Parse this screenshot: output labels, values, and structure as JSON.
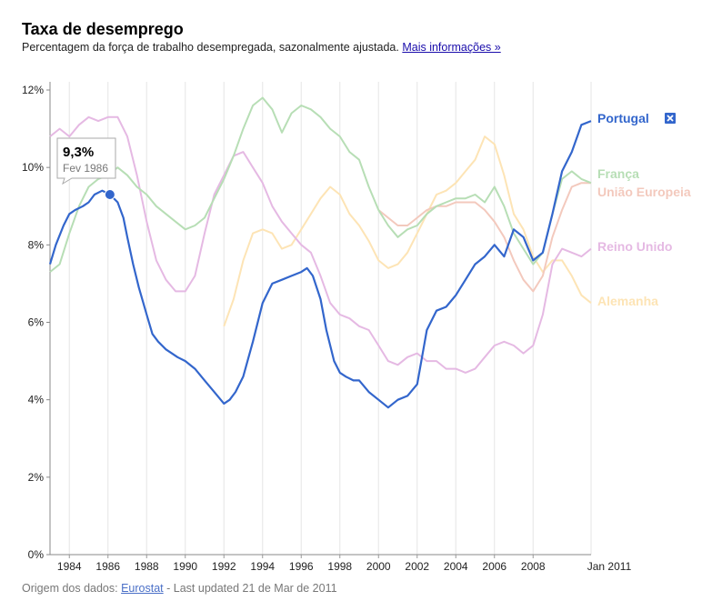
{
  "header": {
    "title": "Taxa de desemprego",
    "subtitle": "Percentagem da força de trabalho desempregada, sazonalmente ajustada.",
    "more_link": "Mais informações »"
  },
  "footer": {
    "source_prefix": "Origem dos dados:",
    "source_link": "Eurostat",
    "updated": "- Last updated 21 de Mar de 2011"
  },
  "chart_data": {
    "type": "line",
    "title": "Taxa de desemprego",
    "ylim": [
      0,
      12
    ],
    "xlim": [
      1983.0,
      2011.0
    ],
    "y_ticks": [
      0,
      2,
      4,
      6,
      8,
      10,
      12
    ],
    "y_tick_labels": [
      "0%",
      "2%",
      "4%",
      "6%",
      "8%",
      "10%",
      "12%"
    ],
    "x_ticks": [
      1984,
      1986,
      1988,
      1990,
      1992,
      1994,
      1996,
      1998,
      2000,
      2002,
      2004,
      2006,
      2008
    ],
    "x_tick_labels": [
      "1984",
      "1986",
      "1988",
      "1990",
      "1992",
      "1994",
      "1996",
      "1998",
      "2000",
      "2002",
      "2004",
      "2006",
      "2008"
    ],
    "x_end_label": "Jan 2011",
    "grid": "vertical",
    "legend_position": "right",
    "tooltip": {
      "value": "9,3%",
      "date": "Fev 1986",
      "x": 1986.1,
      "y": 9.3,
      "series": "Portugal"
    },
    "series": [
      {
        "name": "Portugal",
        "color": "#3366cc",
        "closable": true,
        "x": [
          1983.0,
          1983.3,
          1983.7,
          1984.0,
          1984.3,
          1984.7,
          1985.0,
          1985.3,
          1985.7,
          1986.1,
          1986.5,
          1986.8,
          1987.0,
          1987.3,
          1987.6,
          1988.0,
          1988.3,
          1988.6,
          1989.0,
          1989.3,
          1989.6,
          1990.0,
          1990.5,
          1991.0,
          1991.5,
          1992.0,
          1992.3,
          1992.6,
          1993.0,
          1993.5,
          1994.0,
          1994.5,
          1995.0,
          1995.5,
          1996.0,
          1996.3,
          1996.6,
          1997.0,
          1997.3,
          1997.7,
          1998.0,
          1998.3,
          1998.7,
          1999.0,
          1999.5,
          2000.0,
          2000.5,
          2001.0,
          2001.5,
          2002.0,
          2002.5,
          2003.0,
          2003.5,
          2004.0,
          2004.5,
          2005.0,
          2005.5,
          2006.0,
          2006.5,
          2007.0,
          2007.5,
          2008.0,
          2008.5,
          2009.0,
          2009.5,
          2010.0,
          2010.5,
          2011.0
        ],
        "y": [
          7.5,
          8.0,
          8.5,
          8.8,
          8.9,
          9.0,
          9.1,
          9.3,
          9.4,
          9.3,
          9.1,
          8.7,
          8.2,
          7.5,
          6.9,
          6.2,
          5.7,
          5.5,
          5.3,
          5.2,
          5.1,
          5.0,
          4.8,
          4.5,
          4.2,
          3.9,
          4.0,
          4.2,
          4.6,
          5.5,
          6.5,
          7.0,
          7.1,
          7.2,
          7.3,
          7.4,
          7.2,
          6.6,
          5.8,
          5.0,
          4.7,
          4.6,
          4.5,
          4.5,
          4.2,
          4.0,
          3.8,
          4.0,
          4.1,
          4.4,
          5.8,
          6.3,
          6.4,
          6.7,
          7.1,
          7.5,
          7.7,
          8.0,
          7.7,
          8.4,
          8.2,
          7.6,
          7.8,
          8.8,
          9.9,
          10.4,
          11.1,
          11.2
        ]
      },
      {
        "name": "França",
        "color": "#b7deb5",
        "x": [
          1983.0,
          1983.5,
          1984.0,
          1984.5,
          1985.0,
          1985.5,
          1986.0,
          1986.5,
          1987.0,
          1987.5,
          1988.0,
          1988.5,
          1989.0,
          1989.5,
          1990.0,
          1990.5,
          1991.0,
          1991.5,
          1992.0,
          1992.5,
          1993.0,
          1993.5,
          1994.0,
          1994.5,
          1995.0,
          1995.5,
          1996.0,
          1996.5,
          1997.0,
          1997.5,
          1998.0,
          1998.5,
          1999.0,
          1999.5,
          2000.0,
          2000.5,
          2001.0,
          2001.5,
          2002.0,
          2002.5,
          2003.0,
          2003.5,
          2004.0,
          2004.5,
          2005.0,
          2005.5,
          2006.0,
          2006.5,
          2007.0,
          2007.5,
          2008.0,
          2008.5,
          2009.0,
          2009.5,
          2010.0,
          2010.5,
          2011.0
        ],
        "y": [
          7.3,
          7.5,
          8.3,
          9.0,
          9.5,
          9.7,
          9.8,
          10.0,
          9.8,
          9.5,
          9.3,
          9.0,
          8.8,
          8.6,
          8.4,
          8.5,
          8.7,
          9.2,
          9.7,
          10.3,
          11.0,
          11.6,
          11.8,
          11.5,
          10.9,
          11.4,
          11.6,
          11.5,
          11.3,
          11.0,
          10.8,
          10.4,
          10.2,
          9.5,
          8.9,
          8.5,
          8.2,
          8.4,
          8.5,
          8.8,
          9.0,
          9.1,
          9.2,
          9.2,
          9.3,
          9.1,
          9.5,
          9.0,
          8.3,
          7.9,
          7.5,
          7.8,
          8.8,
          9.7,
          9.9,
          9.7,
          9.6
        ]
      },
      {
        "name": "União Europeia",
        "color": "#f3c9bd",
        "x": [
          2000.0,
          2000.5,
          2001.0,
          2001.5,
          2002.0,
          2002.5,
          2003.0,
          2003.5,
          2004.0,
          2004.5,
          2005.0,
          2005.5,
          2006.0,
          2006.5,
          2007.0,
          2007.5,
          2008.0,
          2008.5,
          2009.0,
          2009.5,
          2010.0,
          2010.5,
          2011.0
        ],
        "y": [
          8.9,
          8.7,
          8.5,
          8.5,
          8.7,
          8.9,
          9.0,
          9.0,
          9.1,
          9.1,
          9.1,
          8.9,
          8.6,
          8.2,
          7.6,
          7.1,
          6.8,
          7.2,
          8.2,
          8.9,
          9.5,
          9.6,
          9.6
        ]
      },
      {
        "name": "Reino Unido",
        "color": "#e5b9e3",
        "x": [
          1983.0,
          1983.5,
          1984.0,
          1984.5,
          1985.0,
          1985.5,
          1986.0,
          1986.5,
          1987.0,
          1987.5,
          1988.0,
          1988.5,
          1989.0,
          1989.5,
          1990.0,
          1990.5,
          1991.0,
          1991.5,
          1992.0,
          1992.5,
          1993.0,
          1993.5,
          1994.0,
          1994.5,
          1995.0,
          1995.5,
          1996.0,
          1996.5,
          1997.0,
          1997.5,
          1998.0,
          1998.5,
          1999.0,
          1999.5,
          2000.0,
          2000.5,
          2001.0,
          2001.5,
          2002.0,
          2002.5,
          2003.0,
          2003.5,
          2004.0,
          2004.5,
          2005.0,
          2005.5,
          2006.0,
          2006.5,
          2007.0,
          2007.5,
          2008.0,
          2008.5,
          2009.0,
          2009.5,
          2010.0,
          2010.5,
          2011.0
        ],
        "y": [
          10.8,
          11.0,
          10.8,
          11.1,
          11.3,
          11.2,
          11.3,
          11.3,
          10.8,
          9.8,
          8.6,
          7.6,
          7.1,
          6.8,
          6.8,
          7.2,
          8.3,
          9.3,
          9.8,
          10.3,
          10.4,
          10.0,
          9.6,
          9.0,
          8.6,
          8.3,
          8.0,
          7.8,
          7.2,
          6.5,
          6.2,
          6.1,
          5.9,
          5.8,
          5.4,
          5.0,
          4.9,
          5.1,
          5.2,
          5.0,
          5.0,
          4.8,
          4.8,
          4.7,
          4.8,
          5.1,
          5.4,
          5.5,
          5.4,
          5.2,
          5.4,
          6.2,
          7.5,
          7.9,
          7.8,
          7.7,
          7.9
        ]
      },
      {
        "name": "Alemanha",
        "color": "#fde4b5",
        "x": [
          1992.0,
          1992.5,
          1993.0,
          1993.5,
          1994.0,
          1994.5,
          1995.0,
          1995.5,
          1996.0,
          1996.5,
          1997.0,
          1997.5,
          1998.0,
          1998.5,
          1999.0,
          1999.5,
          2000.0,
          2000.5,
          2001.0,
          2001.5,
          2002.0,
          2002.5,
          2003.0,
          2003.5,
          2004.0,
          2004.5,
          2005.0,
          2005.5,
          2006.0,
          2006.5,
          2007.0,
          2007.5,
          2008.0,
          2008.5,
          2009.0,
          2009.5,
          2010.0,
          2010.5,
          2011.0
        ],
        "y": [
          5.9,
          6.6,
          7.6,
          8.3,
          8.4,
          8.3,
          7.9,
          8.0,
          8.4,
          8.8,
          9.2,
          9.5,
          9.3,
          8.8,
          8.5,
          8.1,
          7.6,
          7.4,
          7.5,
          7.8,
          8.3,
          8.8,
          9.3,
          9.4,
          9.6,
          9.9,
          10.2,
          10.8,
          10.6,
          9.8,
          8.8,
          8.4,
          7.7,
          7.3,
          7.6,
          7.6,
          7.2,
          6.7,
          6.5
        ]
      }
    ]
  }
}
